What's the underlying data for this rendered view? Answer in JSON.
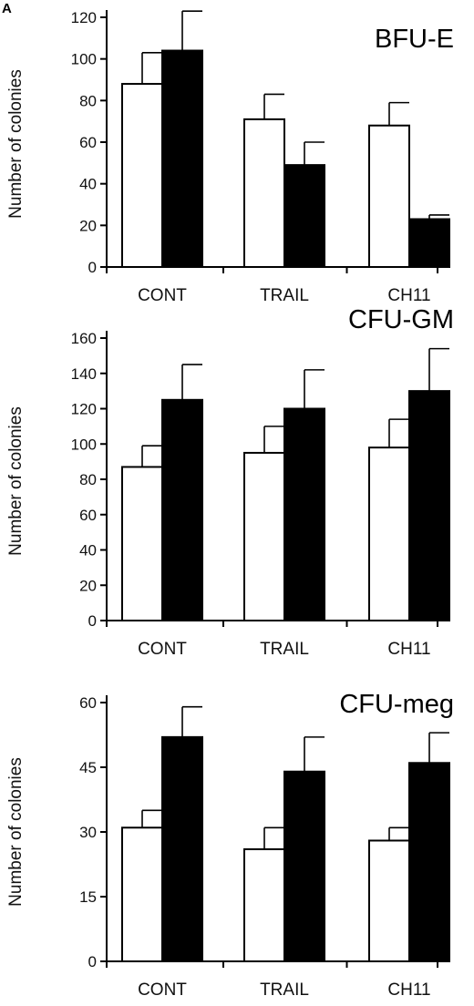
{
  "panel_letter": "A",
  "chart_data": [
    {
      "type": "bar",
      "title": "BFU-E",
      "ylabel": "Number of colonies",
      "xlabel": "",
      "categories": [
        "CONT",
        "TRAIL",
        "CH11"
      ],
      "ylim": [
        0,
        120
      ],
      "yticks": [
        0,
        20,
        40,
        60,
        80,
        100,
        120
      ],
      "series": [
        {
          "color": "#ffffff",
          "values": [
            88,
            71,
            68
          ],
          "errors": [
            15,
            12,
            11
          ]
        },
        {
          "color": "#000000",
          "values": [
            104,
            49,
            23
          ],
          "errors": [
            19,
            11,
            2
          ]
        }
      ]
    },
    {
      "type": "bar",
      "title": "CFU-GM",
      "ylabel": "Number of colonies",
      "xlabel": "",
      "categories": [
        "CONT",
        "TRAIL",
        "CH11"
      ],
      "ylim": [
        0,
        160
      ],
      "yticks": [
        0,
        20,
        40,
        60,
        80,
        100,
        120,
        140,
        160
      ],
      "series": [
        {
          "color": "#ffffff",
          "values": [
            87,
            95,
            98
          ],
          "errors": [
            12,
            15,
            16
          ]
        },
        {
          "color": "#000000",
          "values": [
            125,
            120,
            130
          ],
          "errors": [
            20,
            22,
            24
          ]
        }
      ]
    },
    {
      "type": "bar",
      "title": "CFU-meg",
      "ylabel": "Number of colonies",
      "xlabel": "",
      "categories": [
        "CONT",
        "TRAIL",
        "CH11"
      ],
      "ylim": [
        0,
        60
      ],
      "yticks": [
        0,
        15,
        30,
        45,
        60
      ],
      "series": [
        {
          "color": "#ffffff",
          "values": [
            31,
            26,
            28
          ],
          "errors": [
            4,
            5,
            3
          ]
        },
        {
          "color": "#000000",
          "values": [
            52,
            44,
            46
          ],
          "errors": [
            7,
            8,
            7
          ]
        }
      ]
    }
  ]
}
